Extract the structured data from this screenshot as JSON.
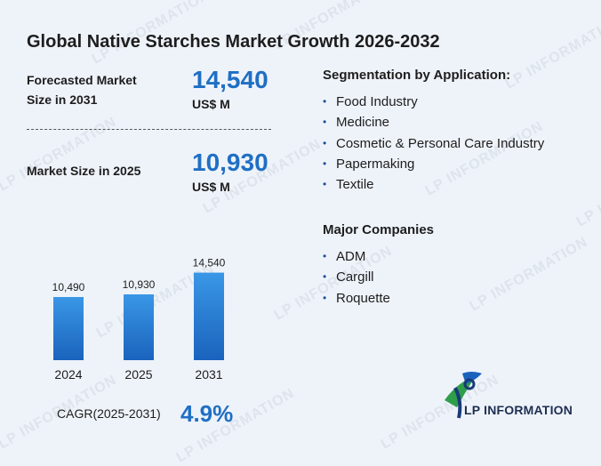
{
  "title": "Global Native Starches Market Growth 2026-2032",
  "forecast": {
    "label_line1": "Forecasted Market",
    "label_line2": "Size in 2031",
    "value": "14,540",
    "unit": "US$ M"
  },
  "current": {
    "label": "Market Size in 2025",
    "value": "10,930",
    "unit": "US$ M"
  },
  "segmentation": {
    "title": "Segmentation by Application:",
    "items": [
      "Food Industry",
      "Medicine",
      "Cosmetic & Personal Care Industry",
      "Papermaking",
      "Textile"
    ]
  },
  "companies": {
    "title": "Major Companies",
    "items": [
      "ADM",
      "Cargill",
      "Roquette"
    ]
  },
  "cagr": {
    "label": "CAGR(2025-2031)",
    "value": "4.9%"
  },
  "logo": {
    "text": "LP INFORMATION"
  },
  "watermark": "LP INFORMATION",
  "colors": {
    "accent": "#1f6fc4",
    "bar_top": "#3a97e6",
    "bar_bottom": "#1a63bd",
    "background": "#eef3fa"
  },
  "chart_data": {
    "type": "bar",
    "categories": [
      "2024",
      "2025",
      "2031"
    ],
    "values": [
      10490,
      10930,
      14540
    ],
    "value_labels": [
      "10,490",
      "10,930",
      "14,540"
    ],
    "title": "",
    "xlabel": "",
    "ylabel": "",
    "grid": false
  }
}
